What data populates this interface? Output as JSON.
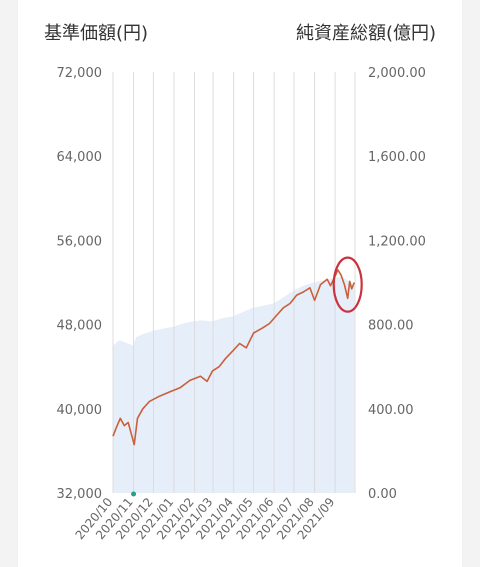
{
  "chart_data": {
    "type": "line",
    "left_axis_title": "基準価額(円)",
    "right_axis_title": "純資産総額(億円)",
    "left_axis": {
      "ylim": [
        32000,
        72000
      ],
      "ticks": [
        "72,000",
        "64,000",
        "56,000",
        "48,000",
        "40,000",
        "32,000"
      ],
      "tick_values": [
        72000,
        64000,
        56000,
        48000,
        40000,
        32000
      ]
    },
    "right_axis": {
      "ylim": [
        0,
        2000
      ],
      "ticks": [
        "2,000.00",
        "1,600.00",
        "1,200.00",
        "800.00",
        "400.00",
        "0.00"
      ],
      "tick_values": [
        2000,
        1600,
        1200,
        800,
        400,
        0
      ]
    },
    "x_range": [
      "2020-10-01",
      "2021-10-01"
    ],
    "x_ticks": [
      "2020/10",
      "2020/11",
      "2020/12",
      "2021/01",
      "2021/02",
      "2021/03",
      "2021/04",
      "2021/05",
      "2021/06",
      "2021/07",
      "2021/08",
      "2021/09"
    ],
    "grid": "vertical",
    "series": [
      {
        "axis": "right",
        "style": "area",
        "color": "#e6eefa",
        "points": [
          [
            "2020-10-01",
            700
          ],
          [
            "2020-10-10",
            725
          ],
          [
            "2020-10-20",
            715
          ],
          [
            "2020-10-31",
            700
          ],
          [
            "2020-11-05",
            740
          ],
          [
            "2020-11-15",
            755
          ],
          [
            "2020-11-30",
            770
          ],
          [
            "2020-12-15",
            780
          ],
          [
            "2020-12-31",
            790
          ],
          [
            "2021-01-20",
            810
          ],
          [
            "2021-02-10",
            820
          ],
          [
            "2021-02-28",
            815
          ],
          [
            "2021-03-15",
            830
          ],
          [
            "2021-03-31",
            840
          ],
          [
            "2021-04-15",
            860
          ],
          [
            "2021-04-30",
            880
          ],
          [
            "2021-05-15",
            890
          ],
          [
            "2021-05-31",
            900
          ],
          [
            "2021-06-15",
            930
          ],
          [
            "2021-06-30",
            960
          ],
          [
            "2021-07-15",
            985
          ],
          [
            "2021-07-31",
            1000
          ],
          [
            "2021-08-15",
            1010
          ],
          [
            "2021-08-31",
            1020
          ],
          [
            "2021-09-10",
            1030
          ],
          [
            "2021-09-20",
            1010
          ],
          [
            "2021-09-30",
            990
          ]
        ]
      },
      {
        "axis": "left",
        "style": "line",
        "color": "#c9603a",
        "points": [
          [
            "2020-10-01",
            37400
          ],
          [
            "2020-10-06",
            38200
          ],
          [
            "2020-10-12",
            39100
          ],
          [
            "2020-10-18",
            38400
          ],
          [
            "2020-10-24",
            38700
          ],
          [
            "2020-10-30",
            37300
          ],
          [
            "2020-11-02",
            36600
          ],
          [
            "2020-11-07",
            39100
          ],
          [
            "2020-11-15",
            40000
          ],
          [
            "2020-11-25",
            40700
          ],
          [
            "2020-12-10",
            41200
          ],
          [
            "2020-12-25",
            41600
          ],
          [
            "2021-01-10",
            42000
          ],
          [
            "2021-01-25",
            42700
          ],
          [
            "2021-02-10",
            43100
          ],
          [
            "2021-02-20",
            42600
          ],
          [
            "2021-02-28",
            43600
          ],
          [
            "2021-03-10",
            44000
          ],
          [
            "2021-03-20",
            44800
          ],
          [
            "2021-04-01",
            45600
          ],
          [
            "2021-04-10",
            46200
          ],
          [
            "2021-04-20",
            45800
          ],
          [
            "2021-05-01",
            47200
          ],
          [
            "2021-05-15",
            47700
          ],
          [
            "2021-05-25",
            48100
          ],
          [
            "2021-06-05",
            48900
          ],
          [
            "2021-06-15",
            49600
          ],
          [
            "2021-06-25",
            50000
          ],
          [
            "2021-07-05",
            50800
          ],
          [
            "2021-07-15",
            51100
          ],
          [
            "2021-07-25",
            51500
          ],
          [
            "2021-08-01",
            50300
          ],
          [
            "2021-08-10",
            51800
          ],
          [
            "2021-08-20",
            52300
          ],
          [
            "2021-08-25",
            51700
          ],
          [
            "2021-09-01",
            52600
          ],
          [
            "2021-09-05",
            53200
          ],
          [
            "2021-09-10",
            52700
          ],
          [
            "2021-09-15",
            51800
          ],
          [
            "2021-09-20",
            50500
          ],
          [
            "2021-09-23",
            52100
          ],
          [
            "2021-09-26",
            51400
          ],
          [
            "2021-09-30",
            52000
          ]
        ]
      }
    ],
    "annotation": {
      "type": "ellipse",
      "color": "#c8333f",
      "center": [
        "2021-09-20",
        51800
      ]
    },
    "marker": {
      "color": "#2a9d8f",
      "date": "2020-11-01"
    }
  }
}
